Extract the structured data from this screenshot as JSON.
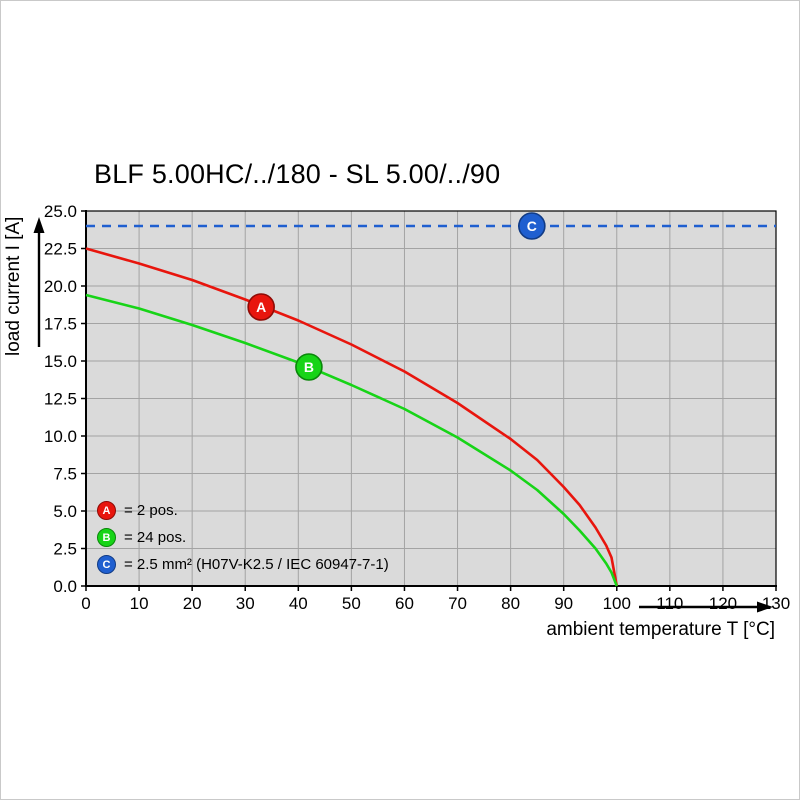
{
  "title": "BLF 5.00HC/../180 - SL 5.00/../90",
  "axes": {
    "y_label": "load current I [A]",
    "x_label": "ambient temperature T [°C]"
  },
  "legend": [
    {
      "marker": "A",
      "label": "= 2 pos.",
      "color": "#e8150d",
      "edge": "#8f0b06"
    },
    {
      "marker": "B",
      "label": "= 24 pos.",
      "color": "#17d417",
      "edge": "#0a870a"
    },
    {
      "marker": "C",
      "label": "= 2.5 mm² (H07V-K2.5 / IEC 60947-7-1)",
      "color": "#1f5fd0",
      "edge": "#113b85"
    }
  ],
  "chart_data": {
    "type": "line",
    "title": "BLF 5.00HC/../180 - SL 5.00/../90",
    "xlabel": "ambient temperature T [°C]",
    "ylabel": "load current I [A]",
    "xlim": [
      0,
      130
    ],
    "ylim": [
      0,
      25
    ],
    "x_ticks": [
      0,
      10,
      20,
      30,
      40,
      50,
      60,
      70,
      80,
      90,
      100,
      110,
      120,
      130
    ],
    "y_ticks": [
      0,
      2.5,
      5,
      7.5,
      10,
      12.5,
      15,
      17.5,
      20,
      22.5,
      25
    ],
    "grid": true,
    "plot_bg": "#dadada",
    "grid_color": "#a3a3a3",
    "legend_position": "lower-left-inside",
    "series": [
      {
        "name": "A = 2 pos.",
        "color": "#e8150d",
        "edge": "#8f0b06",
        "style": "solid",
        "marker": {
          "label": "A",
          "x": 33,
          "y": 18.6
        },
        "points": [
          [
            0,
            22.5
          ],
          [
            10,
            21.5
          ],
          [
            20,
            20.4
          ],
          [
            30,
            19.1
          ],
          [
            40,
            17.7
          ],
          [
            50,
            16.1
          ],
          [
            60,
            14.3
          ],
          [
            70,
            12.2
          ],
          [
            80,
            9.8
          ],
          [
            85,
            8.4
          ],
          [
            90,
            6.6
          ],
          [
            93,
            5.4
          ],
          [
            96,
            3.9
          ],
          [
            98,
            2.7
          ],
          [
            99,
            1.9
          ],
          [
            100,
            0
          ]
        ]
      },
      {
        "name": "B = 24 pos.",
        "color": "#17d417",
        "edge": "#0a870a",
        "style": "solid",
        "marker": {
          "label": "B",
          "x": 42,
          "y": 14.6
        },
        "points": [
          [
            0,
            19.4
          ],
          [
            10,
            18.5
          ],
          [
            20,
            17.4
          ],
          [
            30,
            16.2
          ],
          [
            40,
            14.9
          ],
          [
            50,
            13.4
          ],
          [
            60,
            11.8
          ],
          [
            70,
            9.9
          ],
          [
            80,
            7.7
          ],
          [
            85,
            6.4
          ],
          [
            90,
            4.8
          ],
          [
            93,
            3.7
          ],
          [
            96,
            2.5
          ],
          [
            98,
            1.5
          ],
          [
            99,
            0.9
          ],
          [
            100,
            0
          ]
        ]
      },
      {
        "name": "C = 2.5 mm² (H07V-K2.5 / IEC 60947-7-1)",
        "color": "#1f5fd0",
        "edge": "#113b85",
        "style": "dashed",
        "marker": {
          "label": "C",
          "x": 84,
          "y": 24
        },
        "points": [
          [
            0,
            24
          ],
          [
            130,
            24
          ]
        ]
      }
    ]
  }
}
